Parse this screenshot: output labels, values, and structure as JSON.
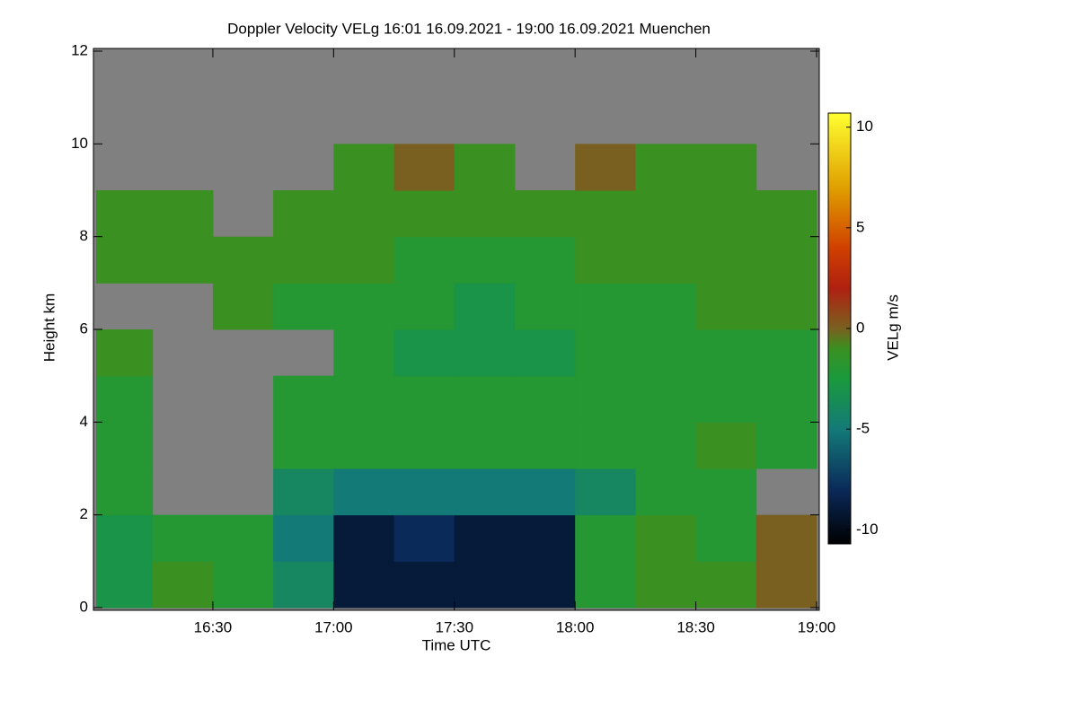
{
  "chart_data": {
    "type": "heatmap",
    "title": "Doppler Velocity VELg   16:01 16.09.2021 - 19:00 16.09.2021 Muenchen",
    "x_label": "Time UTC",
    "y_label": "Height km",
    "colorbar_label": "VELg m/s",
    "x_bins": [
      961,
      975,
      990,
      1005,
      1020,
      1035,
      1050,
      1065,
      1080,
      1095,
      1110,
      1125,
      1140
    ],
    "y_bins": [
      0,
      1,
      2,
      3,
      4,
      5,
      6,
      7,
      8,
      9,
      10,
      11,
      12
    ],
    "values": [
      [
        -3,
        -1,
        -2,
        -4,
        -9,
        -9,
        -9,
        -9,
        -2,
        -1,
        -1,
        0
      ],
      [
        -3,
        -2,
        -2,
        -5,
        -9,
        -8,
        -9,
        -9,
        -2,
        -1,
        -2,
        0
      ],
      [
        -2,
        null,
        null,
        -4,
        -5,
        -5,
        -5,
        -5,
        -4,
        -2,
        -2,
        null
      ],
      [
        -2,
        null,
        null,
        -2,
        -2,
        -2,
        -2,
        -2,
        -2,
        -2,
        -1,
        -2
      ],
      [
        -2,
        null,
        null,
        -2,
        -2,
        -2,
        -2,
        -2,
        -2,
        -2,
        -2,
        -2
      ],
      [
        -1,
        null,
        null,
        null,
        -2,
        -3,
        -3,
        -3,
        -2,
        -2,
        -2,
        -2
      ],
      [
        null,
        null,
        -1,
        -2,
        -2,
        -2,
        -3,
        -2,
        -2,
        -2,
        -1,
        -1
      ],
      [
        -1,
        -1,
        -1,
        -1,
        -1,
        -2,
        -2,
        -2,
        -1,
        -1,
        -1,
        -1
      ],
      [
        -1,
        -1,
        null,
        -1,
        -1,
        -1,
        -1,
        -1,
        -1,
        -1,
        -1,
        -1
      ],
      [
        null,
        null,
        null,
        null,
        -1,
        0,
        -1,
        null,
        0,
        -1,
        -1,
        null
      ],
      [
        null,
        null,
        null,
        null,
        null,
        null,
        null,
        null,
        null,
        null,
        null,
        null
      ],
      [
        null,
        null,
        null,
        null,
        null,
        null,
        null,
        null,
        null,
        null,
        null,
        null
      ]
    ],
    "xlim": [
      961,
      1140
    ],
    "xticks": [
      {
        "value": 990,
        "label": "16:30"
      },
      {
        "value": 1020,
        "label": "17:00"
      },
      {
        "value": 1050,
        "label": "17:30"
      },
      {
        "value": 1080,
        "label": "18:00"
      },
      {
        "value": 1110,
        "label": "18:30"
      },
      {
        "value": 1140,
        "label": "19:00"
      }
    ],
    "ylim": [
      0,
      12
    ],
    "yticks": [
      0,
      2,
      4,
      6,
      8,
      10,
      12
    ],
    "clim": [
      -10.7,
      10.7
    ],
    "cticks": [
      -10,
      -5,
      0,
      5,
      10
    ],
    "colorscale": [
      [
        -10.7,
        "#000000"
      ],
      [
        -8,
        "#0a2a5a"
      ],
      [
        -5,
        "#137a78"
      ],
      [
        -2.5,
        "#1a9a3c"
      ],
      [
        -1,
        "#3a9020"
      ],
      [
        0,
        "#7a6020"
      ],
      [
        2,
        "#b02010"
      ],
      [
        4,
        "#d04000"
      ],
      [
        7,
        "#e0a000"
      ],
      [
        10.7,
        "#ffff30"
      ]
    ],
    "nodata_color": "#808080"
  }
}
